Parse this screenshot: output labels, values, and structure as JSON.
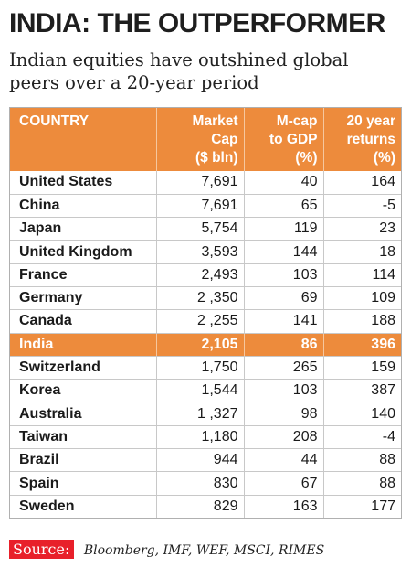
{
  "title": "INDIA: THE OUTPERFORMER",
  "subtitle": "Indian equities have outshined global peers over a 20-year period",
  "accent_color": "#ed8b3c",
  "source_color": "#e8202a",
  "chart_data": {
    "type": "table",
    "columns": [
      [
        "COUNTRY"
      ],
      [
        "Market",
        "Cap",
        "($ bln)"
      ],
      [
        "M-cap",
        "to GDP",
        "(%)"
      ],
      [
        "20 year",
        "returns",
        "(%)"
      ]
    ],
    "rows": [
      [
        "United States",
        "7,691",
        "40",
        "164"
      ],
      [
        "China",
        "7,691",
        "65",
        "-5"
      ],
      [
        "Japan",
        "5,754",
        "119",
        "23"
      ],
      [
        "United Kingdom",
        "3,593",
        "144",
        "18"
      ],
      [
        "France",
        "2,493",
        "103",
        "114"
      ],
      [
        "Germany",
        "2 ,350",
        "69",
        "109"
      ],
      [
        "Canada",
        "2 ,255",
        "141",
        "188"
      ],
      [
        "India",
        "2,105",
        "86",
        "396"
      ],
      [
        "Switzerland",
        "1,750",
        "265",
        "159"
      ],
      [
        "Korea",
        "1,544",
        "103",
        "387"
      ],
      [
        "Australia",
        "1 ,327",
        "98",
        "140"
      ],
      [
        "Taiwan",
        "1,180",
        "208",
        "-4"
      ],
      [
        "Brazil",
        "944",
        "44",
        "88"
      ],
      [
        "Spain",
        "830",
        "67",
        "88"
      ],
      [
        "Sweden",
        "829",
        "163",
        "177"
      ]
    ],
    "highlight_row": "India"
  },
  "source": {
    "label": "Source:",
    "text": "Bloomberg, IMF, WEF, MSCI, RIMES"
  }
}
